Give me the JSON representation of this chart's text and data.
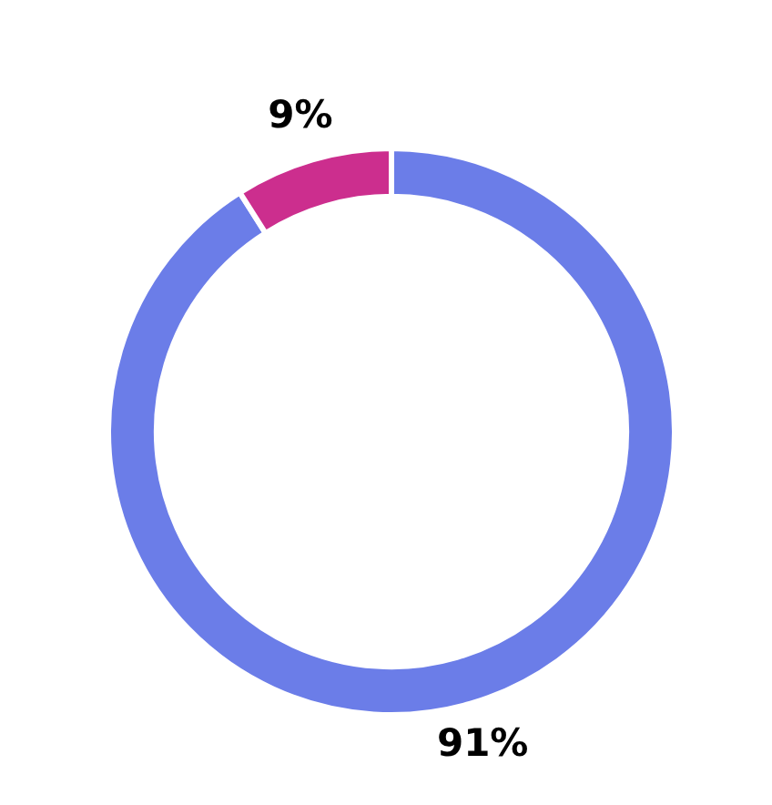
{
  "chart_data": {
    "type": "donut",
    "categories": [
      null,
      null
    ],
    "values": [
      91,
      9
    ],
    "colors": [
      "#6b7de8",
      "#cc2e8e"
    ],
    "value_labels": [
      "91%",
      "9%"
    ],
    "legend": false
  }
}
